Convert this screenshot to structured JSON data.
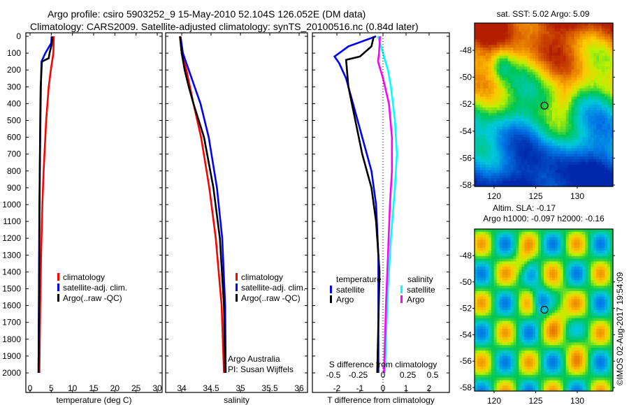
{
  "title_line1": "Argo profile: csiro 5903252_9 15-May-2010 52.104S 126.052E (DM data)",
  "title_line2": "Climatology: CARS2009. Satellite-adjusted climatology: synTS_20100516.nc (0.84d later)",
  "copyright": "©IMOS 02-Aug-2017 19:54:09",
  "chart_data": [
    {
      "type": "line",
      "name": "temperature",
      "xlabel": "temperature (deg C)",
      "xlim": [
        -1,
        31
      ],
      "ylim": [
        2050,
        0
      ],
      "xticks": [
        0,
        5,
        10,
        15,
        20,
        25,
        30
      ],
      "yticks": [
        0,
        100,
        200,
        300,
        400,
        500,
        600,
        700,
        800,
        900,
        1000,
        1100,
        1200,
        1300,
        1400,
        1500,
        1600,
        1700,
        1800,
        1900,
        2000
      ],
      "legend": [
        "climatology",
        "satellite-adj. clim.",
        "Argo(..raw -QC)"
      ],
      "series": [
        {
          "name": "climatology",
          "color": "#ff0000",
          "depth": [
            0,
            100,
            200,
            300,
            500,
            800,
            1000,
            1300,
            1600,
            2000
          ],
          "values": [
            5.6,
            5.5,
            4.9,
            4.4,
            3.8,
            3.2,
            2.9,
            2.6,
            2.4,
            2.2
          ]
        },
        {
          "name": "satellite-adj. clim.",
          "color": "#0000ff",
          "depth": [
            0,
            40,
            100,
            150,
            250,
            400,
            600,
            1000,
            1500,
            2000
          ],
          "values": [
            5.1,
            5.0,
            3.6,
            2.7,
            2.6,
            2.5,
            2.4,
            2.2,
            2.1,
            2.0
          ]
        },
        {
          "name": "Argo(..raw -QC)",
          "color": "#000000",
          "depth": [
            0,
            50,
            100,
            130,
            150,
            300,
            500,
            800,
            1200,
            1600,
            2000
          ],
          "values": [
            5.2,
            5.1,
            4.6,
            4.4,
            2.8,
            2.5,
            2.4,
            2.3,
            2.2,
            2.1,
            2.0
          ]
        }
      ]
    },
    {
      "type": "line",
      "name": "salinity",
      "xlabel": "salinity",
      "xlim": [
        33.7,
        36.1
      ],
      "ylim": [
        2050,
        0
      ],
      "xticks": [
        34,
        34.5,
        35,
        35.5,
        36
      ],
      "annotation": [
        "Argo Australia",
        "PI: Susan Wijffels"
      ],
      "legend": [
        "climatology",
        "satellite-adj. clim.",
        "Argo(..raw -QC)"
      ],
      "series": [
        {
          "name": "climatology",
          "color": "#ff0000",
          "depth": [
            0,
            100,
            200,
            400,
            600,
            900,
            1200,
            1600,
            2000
          ],
          "values": [
            33.97,
            34.0,
            34.08,
            34.2,
            34.33,
            34.47,
            34.58,
            34.68,
            34.72
          ]
        },
        {
          "name": "satellite-adj. clim.",
          "color": "#0000ff",
          "depth": [
            0,
            100,
            200,
            400,
            600,
            900,
            1200,
            1600,
            2000
          ],
          "values": [
            33.98,
            34.02,
            34.12,
            34.32,
            34.46,
            34.6,
            34.69,
            34.74,
            34.75
          ]
        },
        {
          "name": "Argo(..raw -QC)",
          "color": "#000000",
          "depth": [
            0,
            100,
            200,
            300,
            400,
            600,
            900,
            1200,
            1600,
            2000
          ],
          "values": [
            33.97,
            34.0,
            34.05,
            34.12,
            34.2,
            34.38,
            34.54,
            34.65,
            34.72,
            34.74
          ]
        }
      ]
    },
    {
      "type": "line",
      "name": "difference",
      "xlabel": "T difference from climatology",
      "x2label": "S difference from climatology",
      "xlim": [
        -3,
        3
      ],
      "ylim": [
        2050,
        0
      ],
      "xticks": [
        -2,
        -1,
        0,
        1,
        2
      ],
      "x2ticks": [
        "-0.5",
        "-0.25",
        "0",
        "0.25",
        "0.5"
      ],
      "legend_titles": [
        "temperature",
        "salinity"
      ],
      "legend": [
        "satellite",
        "Argo",
        "satellite",
        "Argo"
      ],
      "series": [
        {
          "name": "T satellite",
          "color": "#0000ff",
          "axis": "T",
          "depth": [
            0,
            60,
            120,
            160,
            250,
            400,
            600,
            800,
            1000,
            1300,
            1600,
            2000
          ],
          "values": [
            -0.3,
            -1.5,
            -2.1,
            -1.9,
            -1.6,
            -1.3,
            -0.9,
            -0.5,
            -0.3,
            -0.2,
            -0.2,
            -0.2
          ]
        },
        {
          "name": "T Argo",
          "color": "#000000",
          "axis": "T",
          "depth": [
            0,
            60,
            120,
            140,
            300,
            500,
            700,
            900,
            1100,
            1400,
            1700,
            2000
          ],
          "values": [
            -0.4,
            -0.5,
            -1.0,
            -1.6,
            -1.5,
            -1.2,
            -0.9,
            -0.5,
            -0.3,
            -0.15,
            -0.2,
            -0.25
          ]
        },
        {
          "name": "S satellite",
          "color": "#00ffff",
          "axis": "S",
          "depth": [
            0,
            100,
            200,
            300,
            500,
            700,
            900,
            1200,
            1500,
            1800,
            2000
          ],
          "values": [
            -0.05,
            0.0,
            0.05,
            0.08,
            0.12,
            0.14,
            0.12,
            0.08,
            0.05,
            0.03,
            0.02
          ]
        },
        {
          "name": "S Argo",
          "color": "#ff00ff",
          "axis": "S",
          "depth": [
            0,
            100,
            150,
            250,
            400,
            600,
            800,
            1000,
            1300,
            1600,
            2000
          ],
          "values": [
            -0.03,
            -0.04,
            -0.05,
            0.0,
            0.06,
            0.09,
            0.09,
            0.07,
            0.05,
            0.03,
            0.01
          ]
        }
      ]
    },
    {
      "type": "heatmap",
      "name": "sst-map",
      "title": "sat. SST: 5.02 Argo: 5.09",
      "xticks": [
        120,
        125,
        130
      ],
      "yticks": [
        -48,
        -50,
        -52,
        -54,
        -56,
        -58
      ],
      "xlim": [
        117.7,
        134.3
      ],
      "ylim": [
        -58,
        -46.1
      ],
      "marker": [
        126.052,
        -52.104
      ]
    },
    {
      "type": "heatmap",
      "name": "sla-map",
      "title": [
        "Altim. SLA: -0.17",
        "Argo h1000: -0.097 h2000: -0.16"
      ],
      "xticks": [
        120,
        125,
        130
      ],
      "yticks": [
        -48,
        -50,
        -52,
        -54,
        -56,
        -58
      ],
      "xlim": [
        117.7,
        134.3
      ],
      "ylim": [
        -58,
        -46.1
      ],
      "marker": [
        126.052,
        -52.104
      ]
    }
  ]
}
